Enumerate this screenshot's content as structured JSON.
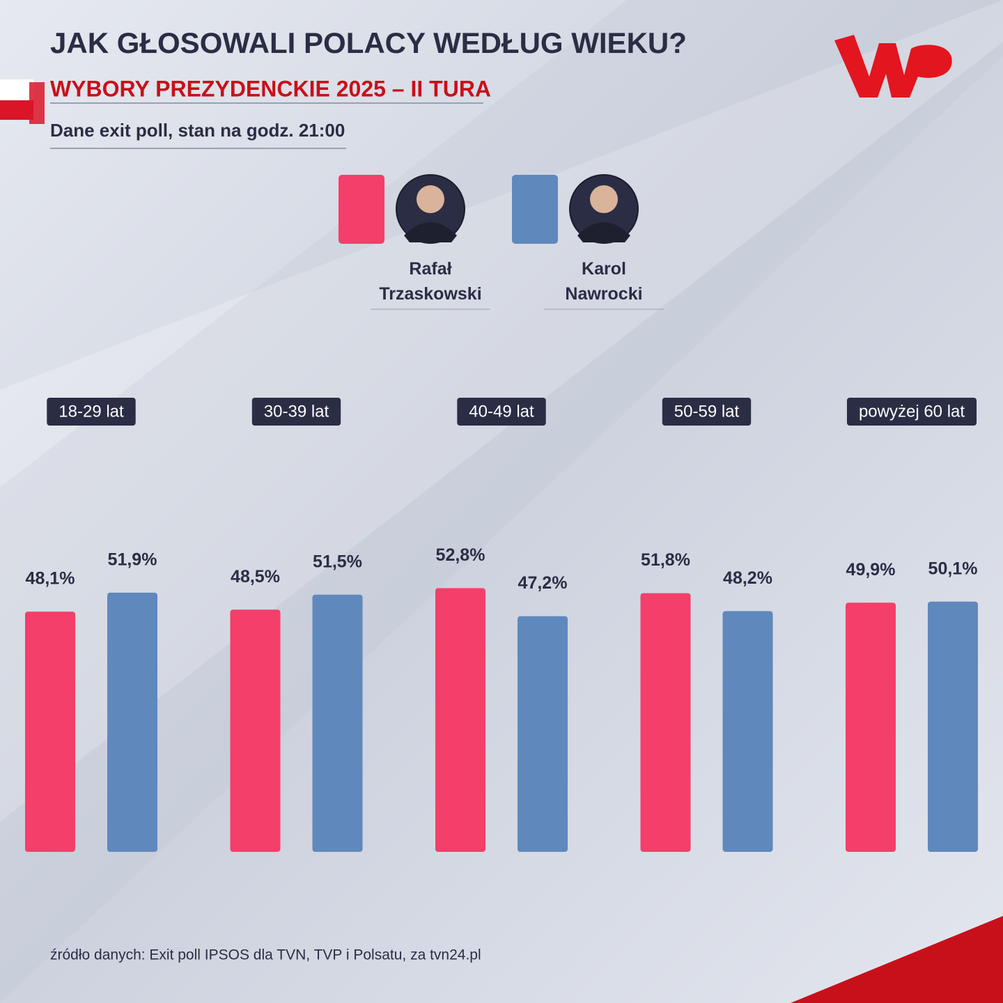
{
  "chart_data": {
    "type": "bar",
    "title": "JAK GŁOSOWALI POLACY WEDŁUG WIEKU?",
    "subtitle": "WYBORY PREZYDENCKIE 2025 – II TURA",
    "note": "Dane exit poll, stan na godz. 21:00",
    "source": "źródło danych: Exit poll IPSOS dla TVN, TVP i Polsatu, za tvn24.pl",
    "categories": [
      "18-29 lat",
      "30-39 lat",
      "40-49 lat",
      "50-59 lat",
      "powyżej 60 lat"
    ],
    "series": [
      {
        "name": "Rafał Trzaskowski",
        "color": "#f33f6a",
        "values": [
          48.1,
          48.5,
          52.8,
          51.8,
          49.9
        ],
        "value_labels": [
          "48,1%",
          "48,5%",
          "52,8%",
          "51,8%",
          "49,9%"
        ]
      },
      {
        "name": "Karol Nawrocki",
        "color": "#5f88bd",
        "values": [
          51.9,
          51.5,
          47.2,
          48.2,
          50.1
        ],
        "value_labels": [
          "51,9%",
          "51,5%",
          "47,2%",
          "48,2%",
          "50,1%"
        ]
      }
    ]
  }
}
